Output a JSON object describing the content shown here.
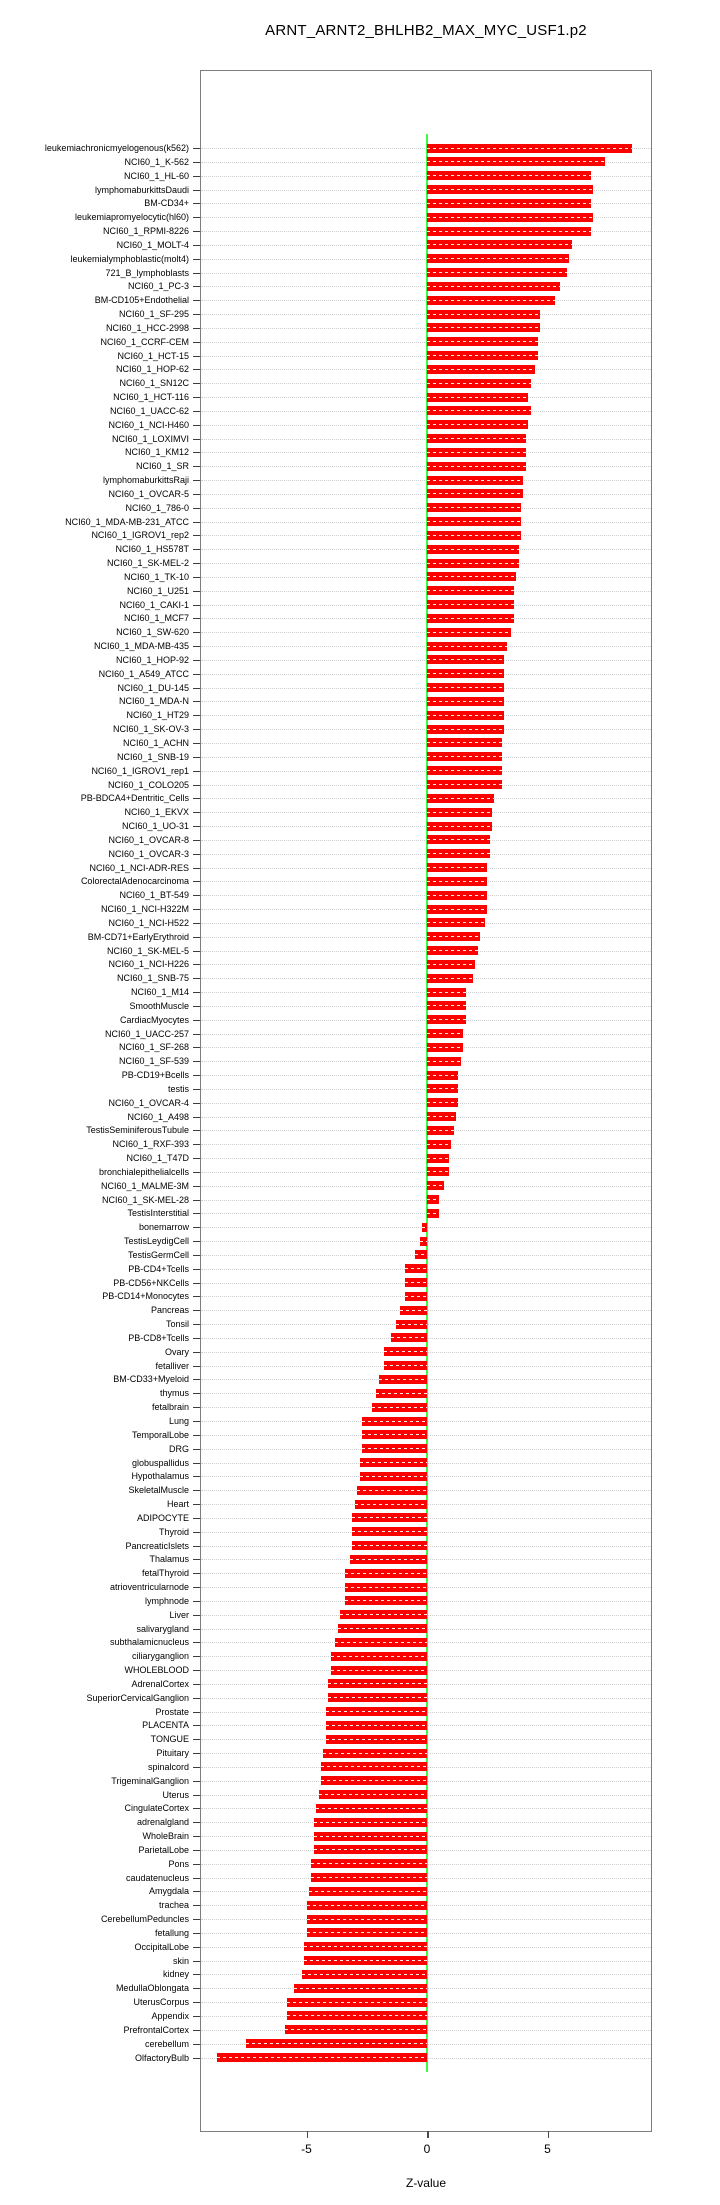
{
  "title": "ARNT_ARNT2_BHLHB2_MAX_MYC_USF1.p2",
  "chart_data": {
    "type": "bar",
    "orientation": "horizontal",
    "title": "ARNT_ARNT2_BHLHB2_MAX_MYC_USF1.p2",
    "xlabel": "Z-value",
    "ylabel": "",
    "x_ticks": [
      -5,
      0,
      5
    ],
    "xlim": [
      -9.4,
      9.3
    ],
    "grid": true,
    "legend": false,
    "bar_color": "#fb0100",
    "zero_line_color": "#3dfb3d",
    "categories": [
      "leukemiachronicmyelogenous(k562)",
      "NCI60_1_K-562",
      "NCI60_1_HL-60",
      "lymphomaburkittsDaudi",
      "BM-CD34+",
      "leukemiapromyelocytic(hl60)",
      "NCI60_1_RPMI-8226",
      "NCI60_1_MOLT-4",
      "leukemialymphoblastic(molt4)",
      "721_B_lymphoblasts",
      "NCI60_1_PC-3",
      "BM-CD105+Endothelial",
      "NCI60_1_SF-295",
      "NCI60_1_HCC-2998",
      "NCI60_1_CCRF-CEM",
      "NCI60_1_HCT-15",
      "NCI60_1_HOP-62",
      "NCI60_1_SN12C",
      "NCI60_1_HCT-116",
      "NCI60_1_UACC-62",
      "NCI60_1_NCI-H460",
      "NCI60_1_LOXIMVI",
      "NCI60_1_KM12",
      "NCI60_1_SR",
      "lymphomaburkittsRaji",
      "NCI60_1_OVCAR-5",
      "NCI60_1_786-0",
      "NCI60_1_MDA-MB-231_ATCC",
      "NCI60_1_IGROV1_rep2",
      "NCI60_1_HS578T",
      "NCI60_1_SK-MEL-2",
      "NCI60_1_TK-10",
      "NCI60_1_U251",
      "NCI60_1_CAKI-1",
      "NCI60_1_MCF7",
      "NCI60_1_SW-620",
      "NCI60_1_MDA-MB-435",
      "NCI60_1_HOP-92",
      "NCI60_1_A549_ATCC",
      "NCI60_1_DU-145",
      "NCI60_1_MDA-N",
      "NCI60_1_HT29",
      "NCI60_1_SK-OV-3",
      "NCI60_1_ACHN",
      "NCI60_1_SNB-19",
      "NCI60_1_IGROV1_rep1",
      "NCI60_1_COLO205",
      "PB-BDCA4+Dentritic_Cells",
      "NCI60_1_EKVX",
      "NCI60_1_UO-31",
      "NCI60_1_OVCAR-8",
      "NCI60_1_OVCAR-3",
      "NCI60_1_NCI-ADR-RES",
      "ColorectalAdenocarcinoma",
      "NCI60_1_BT-549",
      "NCI60_1_NCI-H322M",
      "NCI60_1_NCI-H522",
      "BM-CD71+EarlyErythroid",
      "NCI60_1_SK-MEL-5",
      "NCI60_1_NCI-H226",
      "NCI60_1_SNB-75",
      "NCI60_1_M14",
      "SmoothMuscle",
      "CardiacMyocytes",
      "NCI60_1_UACC-257",
      "NCI60_1_SF-268",
      "NCI60_1_SF-539",
      "PB-CD19+Bcells",
      "testis",
      "NCI60_1_OVCAR-4",
      "NCI60_1_A498",
      "TestisSeminiferousTubule",
      "NCI60_1_RXF-393",
      "NCI60_1_T47D",
      "bronchialepithelialcells",
      "NCI60_1_MALME-3M",
      "NCI60_1_SK-MEL-28",
      "TestisInterstitial",
      "bonemarrow",
      "TestisLeydigCell",
      "TestisGermCell",
      "PB-CD4+Tcells",
      "PB-CD56+NKCells",
      "PB-CD14+Monocytes",
      "Pancreas",
      "Tonsil",
      "PB-CD8+Tcells",
      "Ovary",
      "fetalliver",
      "BM-CD33+Myeloid",
      "thymus",
      "fetalbrain",
      "Lung",
      "TemporalLobe",
      "DRG",
      "globuspallidus",
      "Hypothalamus",
      "SkeletalMuscle",
      "Heart",
      "ADIPOCYTE",
      "Thyroid",
      "PancreaticIslets",
      "Thalamus",
      "fetalThyroid",
      "atrioventricularnode",
      "lymphnode",
      "Liver",
      "salivarygland",
      "subthalamicnucleus",
      "ciliaryganglion",
      "WHOLEBLOOD",
      "AdrenalCortex",
      "SuperiorCervicalGanglion",
      "Prostate",
      "PLACENTA",
      "TONGUE",
      "Pituitary",
      "spinalcord",
      "TrigeminalGanglion",
      "Uterus",
      "CingulateCortex",
      "adrenalgland",
      "WholeBrain",
      "ParietalLobe",
      "Pons",
      "caudatenucleus",
      "Amygdala",
      "trachea",
      "CerebellumPeduncles",
      "fetallung",
      "OccipitalLobe",
      "skin",
      "kidney",
      "MedullaOblongata",
      "UterusCorpus",
      "Appendix",
      "PrefrontalCortex",
      "cerebellum",
      "OlfactoryBulb"
    ],
    "values": [
      8.5,
      7.4,
      6.8,
      6.9,
      6.8,
      6.9,
      6.8,
      6.0,
      5.9,
      5.8,
      5.5,
      5.3,
      4.7,
      4.7,
      4.6,
      4.6,
      4.5,
      4.3,
      4.2,
      4.3,
      4.2,
      4.1,
      4.1,
      4.1,
      4.0,
      4.0,
      3.9,
      3.9,
      3.9,
      3.8,
      3.8,
      3.7,
      3.6,
      3.6,
      3.6,
      3.5,
      3.3,
      3.2,
      3.2,
      3.2,
      3.2,
      3.2,
      3.2,
      3.1,
      3.1,
      3.1,
      3.1,
      2.8,
      2.7,
      2.7,
      2.6,
      2.6,
      2.5,
      2.5,
      2.5,
      2.5,
      2.4,
      2.2,
      2.1,
      2.0,
      1.9,
      1.6,
      1.6,
      1.6,
      1.5,
      1.5,
      1.4,
      1.3,
      1.3,
      1.3,
      1.2,
      1.1,
      1.0,
      0.9,
      0.9,
      0.7,
      0.5,
      0.5,
      -0.2,
      -0.3,
      -0.5,
      -0.9,
      -0.9,
      -0.9,
      -1.1,
      -1.3,
      -1.5,
      -1.8,
      -1.8,
      -2.0,
      -2.1,
      -2.3,
      -2.7,
      -2.7,
      -2.7,
      -2.8,
      -2.8,
      -2.9,
      -3.0,
      -3.1,
      -3.1,
      -3.1,
      -3.2,
      -3.4,
      -3.4,
      -3.4,
      -3.6,
      -3.7,
      -3.8,
      -4.0,
      -4.0,
      -4.1,
      -4.1,
      -4.2,
      -4.2,
      -4.2,
      -4.3,
      -4.4,
      -4.4,
      -4.5,
      -4.6,
      -4.7,
      -4.7,
      -4.7,
      -4.8,
      -4.8,
      -4.9,
      -5.0,
      -5.0,
      -5.0,
      -5.1,
      -5.1,
      -5.2,
      -5.5,
      -5.8,
      -5.8,
      -5.9,
      -7.5,
      -8.7
    ]
  }
}
